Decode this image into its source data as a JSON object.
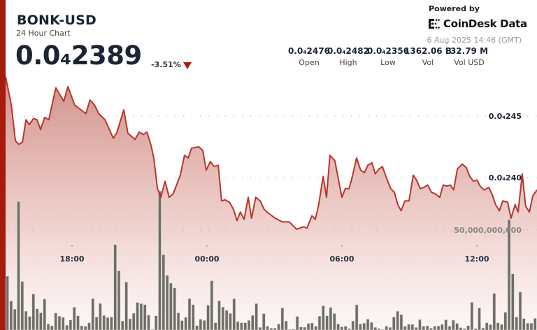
{
  "header": {
    "title": "BONK-USD",
    "subtitle": "24 Hour Chart",
    "price": "0.0₄2389",
    "change": "-3.51%",
    "change_direction": "down",
    "powered_by": "Powered by",
    "brand": "CoinDesk Data",
    "timestamp": "6 Aug 2025 14:46 (GMT)"
  },
  "stats": [
    {
      "value": "0.0₄2476",
      "label": "Open"
    },
    {
      "value": "0.0₄2482",
      "label": "High"
    },
    {
      "value": "0.0₄2356",
      "label": "Low"
    },
    {
      "value": "1362.06 B",
      "label": "Vol"
    },
    {
      "value": "32.79 M",
      "label": "Vol USD"
    }
  ],
  "colors": {
    "accent": "#a51c0e",
    "line": "#b8362a",
    "area_top": "#cf8a83",
    "volume_bar": "#6d6e66",
    "down": "#b3190c"
  },
  "chart_data": {
    "type": "line",
    "grid": true,
    "price_ticks": [
      {
        "value": 2.45e-05,
        "label": "0.0₄245"
      },
      {
        "value": 2.4e-05,
        "label": "0.0₄240"
      }
    ],
    "volume_ticks": [
      {
        "value": 50000000000,
        "label": "50,000,000,000"
      }
    ],
    "time_ticks": [
      "18:00",
      "00:00",
      "06:00",
      "12:00"
    ],
    "price_series": {
      "x": [
        "15:03",
        "15:18",
        "15:29",
        "15:38",
        "15:48",
        "15:57",
        "16:06",
        "16:17",
        "16:27",
        "16:36",
        "16:47",
        "16:58",
        "17:17",
        "17:38",
        "17:49",
        "18:07",
        "18:37",
        "18:48",
        "19:00",
        "19:11",
        "19:28",
        "19:50",
        "19:59",
        "20:18",
        "20:29",
        "20:48",
        "20:59",
        "21:10",
        "21:20",
        "21:31",
        "21:38",
        "21:48",
        "21:57",
        "22:08",
        "22:19",
        "22:30",
        "22:49",
        "23:00",
        "23:10",
        "23:19",
        "23:38",
        "23:49",
        "23:58",
        "00:09",
        "00:19",
        "00:30",
        "00:39",
        "00:48",
        "01:00",
        "01:11",
        "01:20",
        "01:29",
        "01:39",
        "01:50",
        "01:59",
        "02:10",
        "02:22",
        "02:33",
        "02:44",
        "03:02",
        "03:21",
        "03:40",
        "03:59",
        "04:17",
        "04:27",
        "04:40",
        "04:49",
        "04:58",
        "05:10",
        "05:19",
        "05:28",
        "05:41",
        "05:51",
        "06:00",
        "06:09",
        "06:19",
        "06:28",
        "06:39",
        "06:50",
        "07:00",
        "07:09",
        "07:20",
        "07:29",
        "07:39",
        "07:48",
        "08:01",
        "08:10",
        "08:20",
        "08:29",
        "08:38",
        "08:48",
        "08:59",
        "09:10",
        "09:19",
        "09:29",
        "09:38",
        "09:49",
        "09:59",
        "10:08",
        "10:21",
        "10:30",
        "10:40",
        "10:49",
        "10:58",
        "11:08",
        "11:21",
        "11:32",
        "11:41",
        "11:51",
        "12:00",
        "12:09",
        "12:19",
        "12:32",
        "12:41",
        "12:50",
        "13:00",
        "13:09",
        "13:22",
        "13:31",
        "13:42",
        "13:50",
        "14:01",
        "14:10",
        "14:20",
        "14:29",
        "14:38"
      ],
      "y": [
        2.482e-05,
        2.459e-05,
        2.43e-05,
        2.427e-05,
        2.429e-05,
        2.447e-05,
        2.443e-05,
        2.448e-05,
        2.447e-05,
        2.439e-05,
        2.449e-05,
        2.447e-05,
        2.473e-05,
        2.462e-05,
        2.474e-05,
        2.459e-05,
        2.452e-05,
        2.463e-05,
        2.459e-05,
        2.452e-05,
        2.447e-05,
        2.432e-05,
        2.436e-05,
        2.455e-05,
        2.436e-05,
        2.431e-05,
        2.437e-05,
        2.435e-05,
        2.437e-05,
        2.426e-05,
        2.416e-05,
        2.391e-05,
        2.384e-05,
        2.397e-05,
        2.384e-05,
        2.387e-05,
        2.402e-05,
        2.418e-05,
        2.416e-05,
        2.424e-05,
        2.425e-05,
        2.422e-05,
        2.406e-05,
        2.413e-05,
        2.409e-05,
        2.41e-05,
        2.381e-05,
        2.382e-05,
        2.38e-05,
        2.374e-05,
        2.365e-05,
        2.372e-05,
        2.366e-05,
        2.384e-05,
        2.367e-05,
        2.384e-05,
        2.381e-05,
        2.374e-05,
        2.371e-05,
        2.367e-05,
        2.364e-05,
        2.364e-05,
        2.358e-05,
        2.36e-05,
        2.359e-05,
        2.369e-05,
        2.366e-05,
        2.378e-05,
        2.401e-05,
        2.384e-05,
        2.418e-05,
        2.414e-05,
        2.398e-05,
        2.384e-05,
        2.391e-05,
        2.391e-05,
        2.401e-05,
        2.416e-05,
        2.406e-05,
        2.404e-05,
        2.41e-05,
        2.412e-05,
        2.403e-05,
        2.407e-05,
        2.409e-05,
        2.398e-05,
        2.391e-05,
        2.388e-05,
        2.378e-05,
        2.373e-05,
        2.381e-05,
        2.381e-05,
        2.402e-05,
        2.398e-05,
        2.391e-05,
        2.392e-05,
        2.394e-05,
        2.388e-05,
        2.387e-05,
        2.384e-05,
        2.394e-05,
        2.393e-05,
        2.394e-05,
        2.39e-05,
        2.407e-05,
        2.411e-05,
        2.408e-05,
        2.401e-05,
        2.397e-05,
        2.398e-05,
        2.393e-05,
        2.39e-05,
        2.392e-05,
        2.386e-05,
        2.378e-05,
        2.373e-05,
        2.381e-05,
        2.38e-05,
        2.367e-05,
        2.378e-05,
        2.372e-05,
        2.403e-05,
        2.377e-05,
        2.372e-05,
        2.385e-05,
        2.39e-05
      ]
    },
    "volume_series": [
      26900000000.0,
      14500000000.0,
      10400000000.0,
      64200000000.0,
      24300000000.0,
      9400000000.0,
      6800000000.0,
      18000000000.0,
      10600000000.0,
      8600000000.0,
      15500000000.0,
      3000000000.0,
      2100000000.0,
      8500000000.0,
      6900000000.0,
      6300000000.0,
      2400000000.0,
      5000000000.0,
      11400000000.0,
      7100000000.0,
      2100000000.0,
      1900000000.0,
      3600000000.0,
      15700000000.0,
      6500000000.0,
      13300000000.0,
      7300000000.0,
      6200000000.0,
      6500000000.0,
      42700000000.0,
      29600000000.0,
      4500000000.0,
      24000000000.0,
      5600000000.0,
      8300000000.0,
      13800000000.0,
      13200000000.0,
      12700000000.0,
      7500000000.0,
      300000000.0,
      7100000000.0,
      69500000000.0,
      37700000000.0,
      27300000000.0,
      23400000000.0,
      21100000000.0,
      8600000000.0,
      4700000000.0,
      6400000000.0,
      15700000000.0,
      12700000000.0,
      2200000000.0,
      5400000000.0,
      4800000000.0,
      12400000000.0,
      24600000000.0,
      3600000000.0,
      14600000000.0,
      11500000000.0,
      9800000000.0,
      8300000000.0,
      15600000000.0,
      4200000000.0,
      3600000000.0,
      3600000000.0,
      4800000000.0,
      7300000000.0,
      13200000000.0,
      1300000000.0,
      8200000000.0,
      1900000000.0,
      900000000.0,
      900000000.0,
      3000000000.0,
      11000000000.0,
      4500000000.0,
      300000000.0,
      400000000.0,
      6800000000.0,
      1500000000.0,
      1400000000.0,
      3300000000.0,
      3500000000.0,
      1900000000.0,
      6900000000.0,
      12100000000.0,
      7100000000.0,
      11300000000.0,
      8200000000.0,
      3000000000.0,
      1600000000.0,
      1900000000.0,
      700000000.0,
      4500000000.0,
      12600000000.0,
      3000000000.0,
      3400000000.0,
      5400000000.0,
      3800000000.0,
      1300000000.0,
      700000000.0,
      300000000.0,
      1900000000.0,
      1300000000.0,
      6500000000.0,
      9400000000.0,
      7700000000.0,
      1900000000.0,
      2800000000.0,
      2800000000.0,
      1300000000.0,
      5200000000.0,
      1900000000.0,
      2100000000.0,
      900000000.0,
      1900000000.0,
      2000000000.0,
      2800000000.0,
      5100000000.0,
      1900000000.0,
      4900000000.0,
      3300000000.0,
      1200000000.0,
      700000000.0,
      2200000000.0,
      13900000000.0,
      700000000.0,
      11000000000.0,
      1000000000.0,
      3600000000.0,
      2700000000.0,
      18300000000.0,
      3600000000.0,
      2800000000.0,
      8900000000.0,
      55200000000.0,
      28100000000.0,
      6500000000.0,
      19000000000.0,
      5700000000.0,
      3400000000.0,
      3400000000.0,
      5800000000.0
    ]
  }
}
